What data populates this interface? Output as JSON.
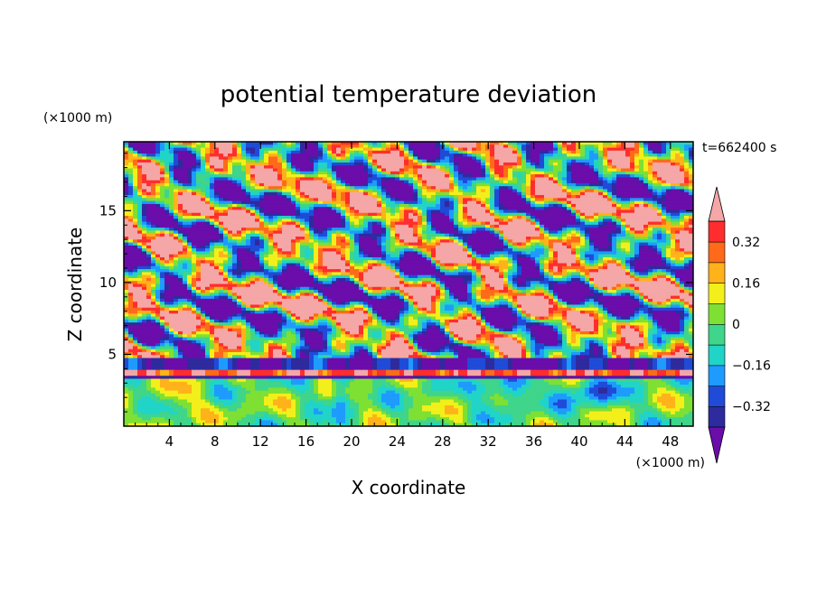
{
  "chart_data": {
    "type": "heatmap",
    "title": "potential temperature deviation",
    "xlabel": "X coordinate",
    "ylabel": "Z coordinate",
    "x_unit": "(×1000 m)",
    "y_unit": "(×1000 m)",
    "time_label": "t=662400 s",
    "xlim": [
      0,
      50
    ],
    "ylim": [
      0,
      19.8
    ],
    "x_ticks": [
      4,
      8,
      12,
      16,
      20,
      24,
      28,
      32,
      36,
      40,
      44,
      48
    ],
    "x_tick_labels": [
      "4",
      "8",
      "12",
      "16",
      "20",
      "24",
      "28",
      "32",
      "36",
      "40",
      "44",
      "48"
    ],
    "y_ticks": [
      5,
      10,
      15
    ],
    "y_tick_labels": [
      "5",
      "10",
      "15"
    ],
    "colorbar": {
      "levels": [
        -0.4,
        -0.32,
        -0.24,
        -0.16,
        -0.08,
        0,
        0.08,
        0.16,
        0.24,
        0.32,
        0.4
      ],
      "tick_values": [
        0.32,
        0.16,
        0,
        -0.16,
        -0.32
      ],
      "tick_labels": [
        "0.32",
        "0.16",
        "0",
        "−0.16",
        "−0.32"
      ],
      "colors": [
        "#6a0daa",
        "#2e2b9e",
        "#1f4bd8",
        "#1e9bff",
        "#20d4c8",
        "#3fd58a",
        "#7ee032",
        "#f3ef1a",
        "#ffb21a",
        "#ff6a1a",
        "#ff2d2d",
        "#f4a7a6"
      ],
      "extend": "both"
    },
    "field": {
      "description_values": "perturbation field; mostly smooth near-zero below z=3.5 km, banded inversion layer around z=3.5-4 km, strong wavy +/-0.4 structures above",
      "inversion_height": 3.8
    }
  }
}
